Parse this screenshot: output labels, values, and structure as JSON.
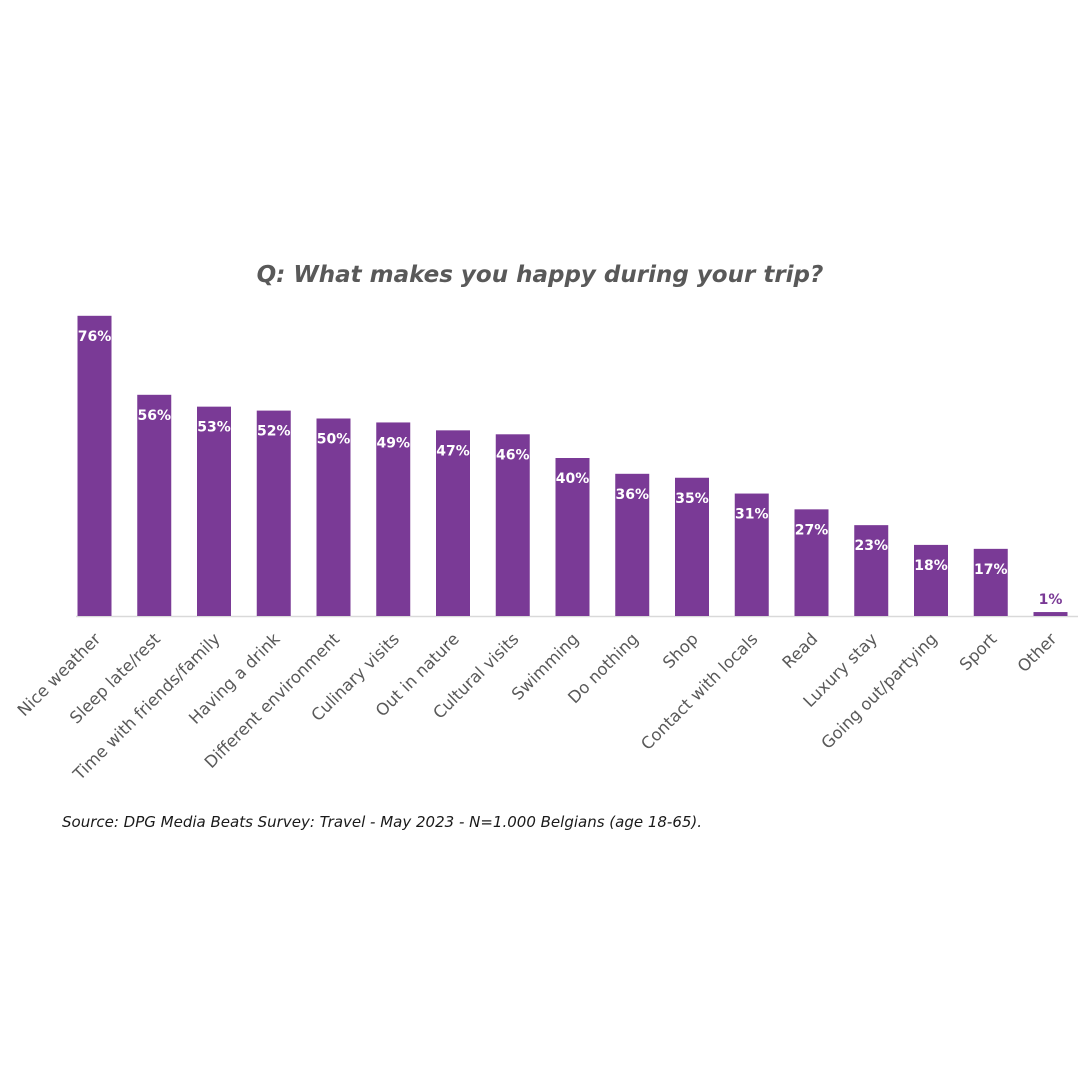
{
  "chart_data": {
    "type": "bar",
    "title": "Q: What makes you happy during your trip?",
    "categories": [
      "Nice weather",
      "Sleep late/rest",
      "Time with friends/family",
      "Having a drink",
      "Different environment",
      "Culinary visits",
      "Out in nature",
      "Cultural visits",
      "Swimming",
      "Do nothing",
      "Shop",
      "Contact with locals",
      "Read",
      "Luxury stay",
      "Going out/partying",
      "Sport",
      "Other"
    ],
    "values": [
      76,
      56,
      53,
      52,
      50,
      49,
      47,
      46,
      40,
      36,
      35,
      31,
      27,
      23,
      18,
      17,
      1
    ],
    "value_labels": [
      "76%",
      "56%",
      "53%",
      "52%",
      "50%",
      "49%",
      "47%",
      "46%",
      "40%",
      "36%",
      "35%",
      "31%",
      "27%",
      "23%",
      "18%",
      "17%",
      "1%"
    ],
    "unit": "%",
    "xlabel": "",
    "ylabel": "",
    "grid": false,
    "legend": "none",
    "colors": {
      "bar": "#7a3a96",
      "label_inside": "#ffffff",
      "label_outside": "#7a3a96",
      "axis": "#d9d9d9",
      "category_text": "#595959"
    }
  },
  "source": "Source: DPG Media Beats Survey: Travel - May 2023 - N=1.000 Belgians (age 18-65)."
}
